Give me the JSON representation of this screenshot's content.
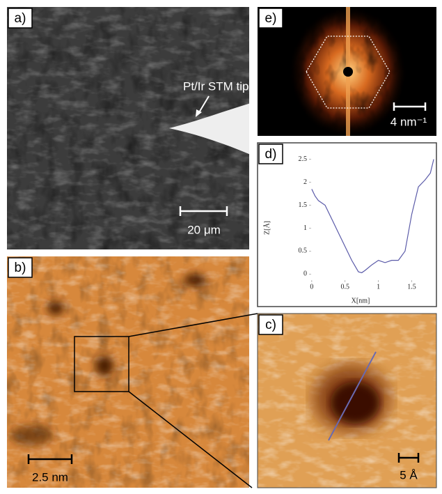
{
  "panels": {
    "a": {
      "label": "a)",
      "annotation": "Pt/Ir STM tip",
      "scale_bar": "20 μm"
    },
    "b": {
      "label": "b)",
      "scale_bar": "2.5 nm"
    },
    "c": {
      "label": "c)",
      "scale_bar": "5 Å"
    },
    "d": {
      "label": "d)"
    },
    "e": {
      "label": "e)",
      "scale_bar": "4 nm⁻¹"
    }
  },
  "chart_data": {
    "type": "line",
    "x_label": "X[nm]",
    "y_label": "Z[Å]",
    "x": [
      0,
      0.05,
      0.1,
      0.2,
      0.3,
      0.4,
      0.5,
      0.6,
      0.7,
      0.75,
      0.8,
      0.9,
      1.0,
      1.1,
      1.2,
      1.3,
      1.4,
      1.5,
      1.6,
      1.7,
      1.78,
      1.83
    ],
    "series": [
      {
        "color": "#5a5aa8",
        "values": [
          1.85,
          1.7,
          1.6,
          1.5,
          1.2,
          0.9,
          0.6,
          0.3,
          0.05,
          0.03,
          0.08,
          0.2,
          0.3,
          0.25,
          0.3,
          0.3,
          0.5,
          1.3,
          1.9,
          2.05,
          2.2,
          2.5
        ]
      }
    ],
    "xlim": [
      -0.03,
      1.85
    ],
    "ylim": [
      -0.1,
      2.6
    ],
    "xticks": [
      0,
      0.5,
      1,
      1.5
    ],
    "yticks": [
      0,
      0.5,
      1,
      1.5,
      2,
      2.5
    ]
  }
}
